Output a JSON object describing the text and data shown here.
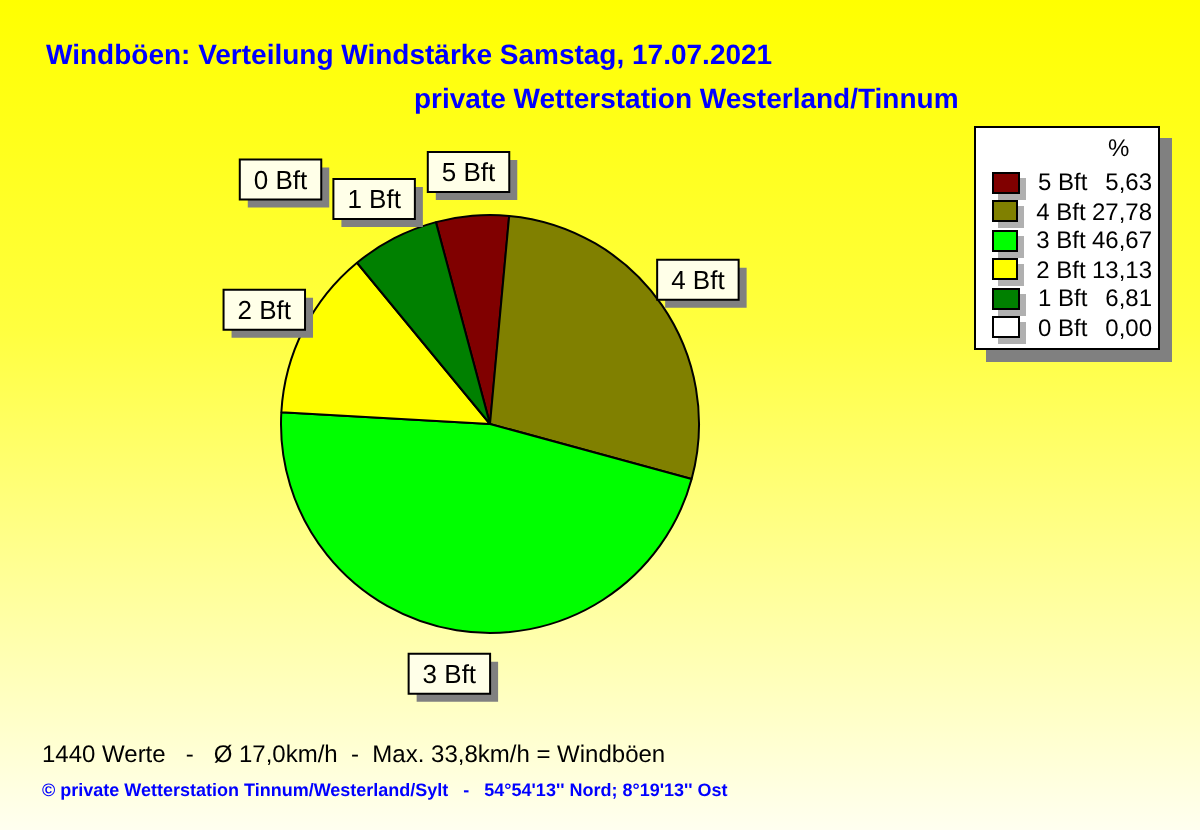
{
  "chart_data": {
    "type": "pie",
    "title": "Windböen: Verteilung Windstärke  Samstag, 17.07.2021",
    "subtitle": "private Wetterstation Westerland/Tinnum",
    "legend_title": "%",
    "categories": [
      "5 Bft",
      "4 Bft",
      "3 Bft",
      "2 Bft",
      "1 Bft",
      "0 Bft"
    ],
    "values": [
      5.63,
      27.78,
      46.67,
      13.13,
      6.81,
      0.0
    ],
    "value_labels": [
      "5,63",
      "27,78",
      "46,67",
      "13,13",
      "6,81",
      "0,00"
    ],
    "colors": [
      "#800000",
      "#808000",
      "#00ff00",
      "#ffff00",
      "#008000",
      "#ffffff"
    ],
    "legend": "top right",
    "annotations": [
      "1440 Werte   -   Ø 17,0km/h  -  Max. 33,8km/h = Windböen",
      "© private Wetterstation Tinnum/Westerland/Sylt   -   54°54'13'' Nord; 8°19'13'' Ost"
    ]
  }
}
